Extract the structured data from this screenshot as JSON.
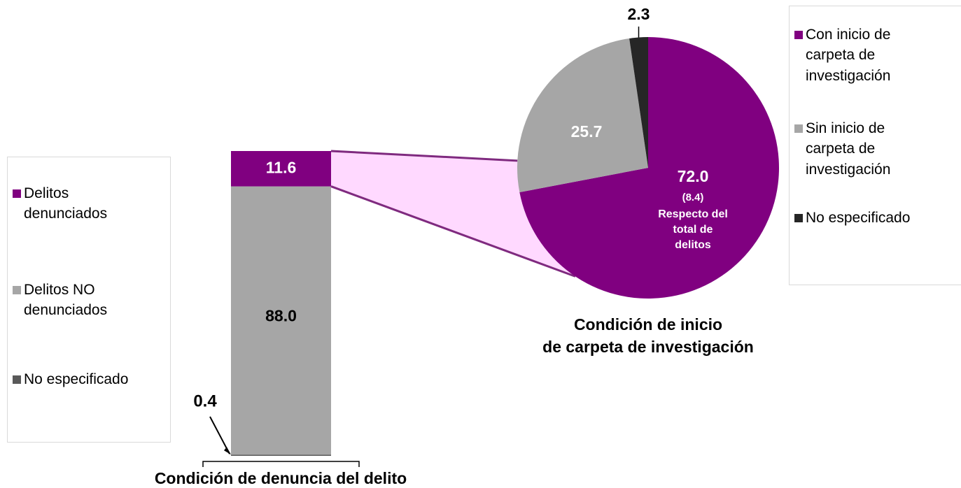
{
  "chart_data": [
    {
      "type": "stacked-bar",
      "title": "Condición de denuncia del delito",
      "series": [
        {
          "name": "Delitos denunciados",
          "color": "#800080",
          "values": [
            11.6
          ]
        },
        {
          "name": "Delitos NO denunciados",
          "color": "#a6a6a6",
          "values": [
            88.0
          ],
          "value_labels": [
            "88.0"
          ]
        },
        {
          "name": "No especificado",
          "color": "#595959",
          "values": [
            0.4
          ]
        }
      ]
    },
    {
      "type": "pie",
      "title": [
        "Condición de inicio",
        "de carpeta de investigación"
      ],
      "categories": [
        "Con inicio de carpeta de investigación",
        "Sin inicio de carpeta de investigación",
        "No especificado"
      ],
      "values": [
        72.0,
        25.7,
        2.3
      ],
      "value_labels": [
        "72.0",
        "25.7",
        "2.3"
      ],
      "colors": [
        "#800080",
        "#a6a6a6",
        "#262626"
      ],
      "annotation": {
        "value": 8.4,
        "label": "(8.4)",
        "text": [
          "Respecto del",
          "total de",
          "delitos"
        ]
      }
    }
  ]
}
